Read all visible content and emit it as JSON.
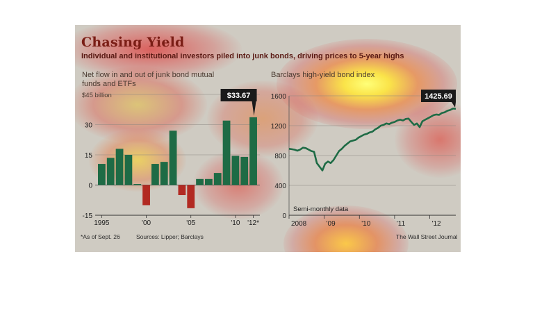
{
  "header": {
    "title": "Chasing Yield",
    "subtitle": "Individual and institutional investors piled into junk bonds, driving prices to 5-year highs"
  },
  "footer": {
    "note": "*As of Sept. 26",
    "sources": "Sources: Lipper; Barclays",
    "credit": "The Wall Street Journal"
  },
  "colors": {
    "positive_bar": "#1e6b45",
    "negative_bar": "#b22a22",
    "line": "#1e6b45",
    "callout_bg": "#1a1a1a"
  },
  "chart_data": [
    {
      "type": "bar",
      "title": "Net flow in and out of junk bond mutual funds and ETFs",
      "unit_label": "$45 billion",
      "x": [
        1995,
        1996,
        1997,
        1998,
        1999,
        2000,
        2001,
        2002,
        2003,
        2004,
        2005,
        2006,
        2007,
        2008,
        2009,
        2010,
        2011,
        2012
      ],
      "values": [
        10.5,
        13.5,
        18,
        15,
        0.5,
        -10,
        10.5,
        11.5,
        27,
        -5,
        -11.5,
        3,
        3,
        6,
        32,
        14.5,
        14,
        33.67
      ],
      "ylim": [
        -15,
        45
      ],
      "yticks": [
        "-15",
        "0",
        "15",
        "30"
      ],
      "xticks": [
        "1995",
        "'00",
        "'05",
        "'10",
        "'12*"
      ],
      "callout": "$33.67",
      "grid": true
    },
    {
      "type": "line",
      "title": "Barclays high-yield bond index",
      "x_start": 2008.0,
      "x_end": 2012.74,
      "values": [
        890,
        885,
        878,
        865,
        880,
        905,
        900,
        880,
        860,
        850,
        700,
        650,
        600,
        690,
        720,
        700,
        740,
        800,
        860,
        890,
        930,
        960,
        990,
        1000,
        1010,
        1040,
        1060,
        1080,
        1090,
        1110,
        1120,
        1150,
        1170,
        1200,
        1210,
        1230,
        1220,
        1240,
        1250,
        1270,
        1280,
        1270,
        1290,
        1295,
        1250,
        1210,
        1230,
        1180,
        1260,
        1280,
        1300,
        1320,
        1340,
        1350,
        1345,
        1370,
        1380,
        1400,
        1410,
        1430,
        1425.69
      ],
      "ylim": [
        0,
        1600
      ],
      "yticks": [
        "0",
        "400",
        "800",
        "1200",
        "1600"
      ],
      "xticks": [
        "2008",
        "'09",
        "'10",
        "'11",
        "'12"
      ],
      "callout": "1425.69",
      "note": "Semi-monthly data",
      "grid": true
    }
  ]
}
